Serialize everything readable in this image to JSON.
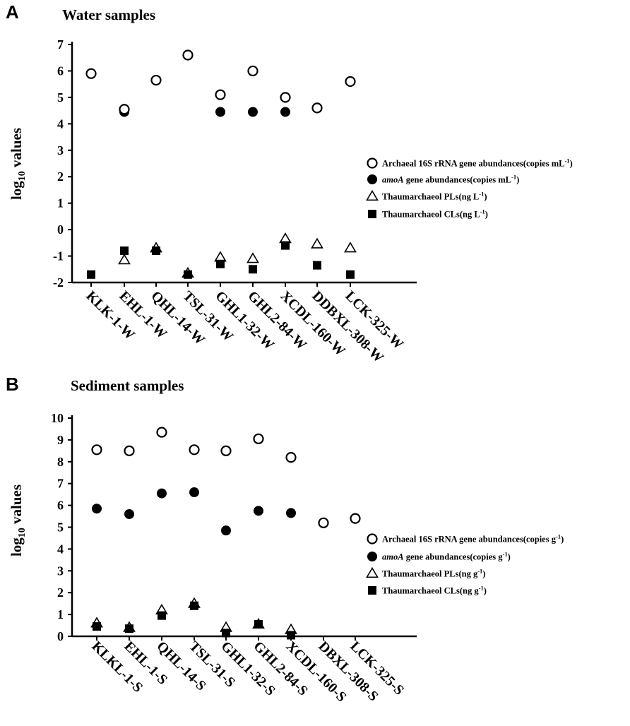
{
  "chart_data": [
    {
      "panel": "A",
      "type": "scatter",
      "title": "Water samples",
      "ylabel_base": "log",
      "ylabel_sub": "10",
      "ylabel_rest": " values",
      "ylim": [
        -2,
        7
      ],
      "yticks": [
        "-2",
        "-1",
        "0",
        "1",
        "2",
        "3",
        "4",
        "5",
        "6",
        "7"
      ],
      "categories": [
        "KLK-1-W",
        "EHL-1-W",
        "QHL-14-W",
        "TSL-31-W",
        "GHL1-32-W",
        "GHL2-84-W",
        "XCDL-160-W",
        "DDBXL-308-W",
        "LCK-325-W"
      ],
      "series": [
        {
          "name": "Archaeal 16S rRNA gene abundances(copies mL",
          "unit_sup": "-1",
          "unit_tail": ")",
          "marker": "open-circle",
          "values": [
            5.9,
            4.55,
            5.65,
            6.6,
            5.1,
            6.0,
            5.0,
            4.6,
            5.6
          ]
        },
        {
          "name_italic": "amoA",
          "name": " gene abundances(copies mL",
          "unit_sup": "-1",
          "unit_tail": ")",
          "marker": "filled-circle",
          "values": [
            null,
            4.45,
            null,
            null,
            4.45,
            4.45,
            4.45,
            null,
            null
          ]
        },
        {
          "name": "Thaumarchaeol PLs(ng L",
          "unit_sup": "-1",
          "unit_tail": ")",
          "marker": "open-triangle",
          "values": [
            null,
            -1.15,
            -0.7,
            -1.65,
            -1.05,
            -1.1,
            -0.35,
            -0.55,
            -0.7
          ]
        },
        {
          "name": "Thaumarchaeol CLs(ng L",
          "unit_sup": "-1",
          "unit_tail": ")",
          "marker": "filled-square",
          "values": [
            -1.7,
            -0.8,
            -0.8,
            -1.7,
            -1.3,
            -1.5,
            -0.6,
            -1.35,
            -1.7
          ]
        }
      ]
    },
    {
      "panel": "B",
      "type": "scatter",
      "title": "Sediment samples",
      "ylabel_base": "log",
      "ylabel_sub": "10",
      "ylabel_rest": " values",
      "ylim": [
        0,
        10
      ],
      "yticks": [
        "0",
        "1",
        "2",
        "3",
        "4",
        "5",
        "6",
        "7",
        "8",
        "9",
        "10"
      ],
      "categories": [
        "KLKL-1-S",
        "EHL-1-S",
        "QHL-14-S",
        "TSL-31-S",
        "GHL1-32-S",
        "GHL2-84-S",
        "XCDL-160-S",
        "DBXL-308-S",
        "LCK-325-S"
      ],
      "series": [
        {
          "name": "Archaeal 16S rRNA gene abundances(copies g",
          "unit_sup": "-1",
          "unit_tail": ")",
          "marker": "open-circle",
          "values": [
            8.55,
            8.5,
            9.35,
            8.55,
            8.5,
            9.05,
            8.2,
            5.2,
            5.4
          ]
        },
        {
          "name_italic": "amoA",
          "name": " gene abundances(copies g",
          "unit_sup": "-1",
          "unit_tail": ")",
          "marker": "filled-circle",
          "values": [
            5.85,
            5.6,
            6.55,
            6.6,
            4.85,
            5.75,
            5.65,
            null,
            null
          ]
        },
        {
          "name": "Thaumarchaeol PLs(ng g",
          "unit_sup": "-1",
          "unit_tail": ")",
          "marker": "open-triangle",
          "values": [
            0.6,
            0.4,
            1.2,
            1.5,
            0.4,
            0.55,
            0.3,
            null,
            null
          ]
        },
        {
          "name": "Thaumarchaeol CLs(ng g",
          "unit_sup": "-1",
          "unit_tail": ")",
          "marker": "filled-square",
          "values": [
            0.45,
            0.35,
            0.95,
            1.4,
            0.15,
            0.55,
            0.05,
            null,
            null
          ]
        }
      ]
    }
  ]
}
